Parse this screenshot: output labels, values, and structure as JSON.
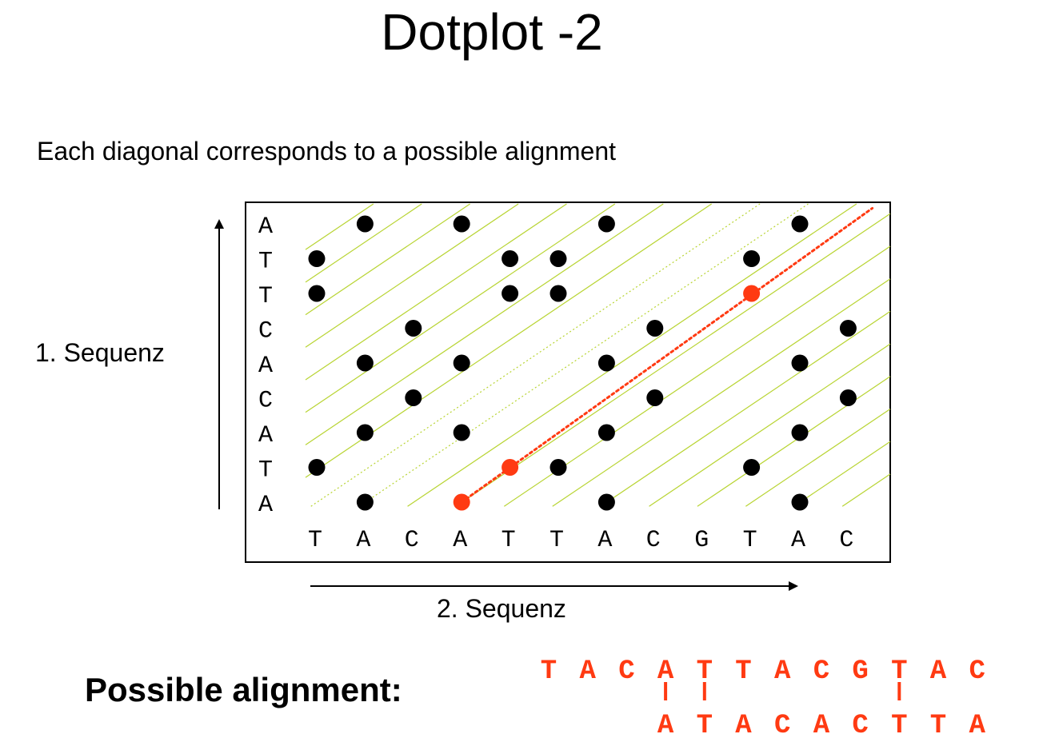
{
  "title": "Dotplot -2",
  "subtitle": "Each diagonal corresponds to a possible alignment",
  "y_axis_label": "1. Sequenz",
  "x_axis_label": "2. Sequenz",
  "possible_alignment_label": "Possible alignment:",
  "sequence_1_top_to_bottom": [
    "A",
    "T",
    "T",
    "C",
    "A",
    "C",
    "A",
    "T",
    "A"
  ],
  "sequence_2_left_to_right": [
    "T",
    "A",
    "C",
    "A",
    "T",
    "T",
    "A",
    "C",
    "G",
    "T",
    "A",
    "C"
  ],
  "alignment": {
    "top": [
      "T",
      "A",
      "C",
      "A",
      "T",
      "T",
      "A",
      "C",
      "G",
      "T",
      "A",
      "C"
    ],
    "bottom": [
      "A",
      "T",
      "A",
      "C",
      "A",
      "C",
      "T",
      "T",
      "A"
    ],
    "bottom_offset": 3,
    "match_columns": [
      3,
      4,
      9
    ]
  },
  "highlighted_dots": [
    {
      "col": 3,
      "row": 8
    },
    {
      "col": 4,
      "row": 7
    },
    {
      "col": 9,
      "row": 2
    }
  ],
  "colors": {
    "dot": "#000000",
    "highlight": "#ff3a12",
    "diagonal": "#b8d432",
    "frame": "#000000"
  }
}
